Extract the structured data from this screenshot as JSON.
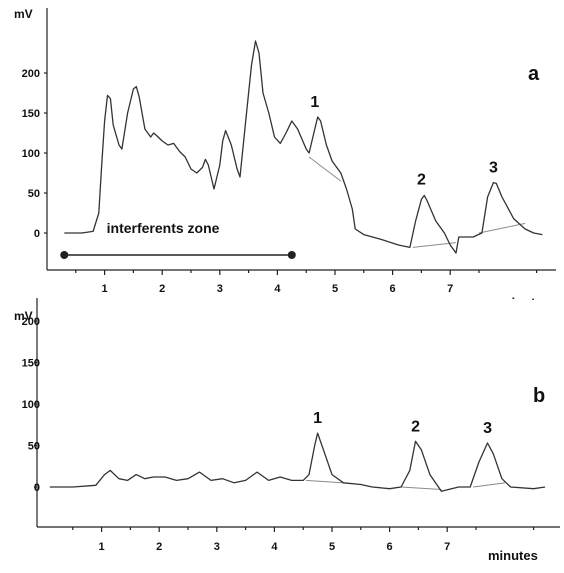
{
  "chart_data": [
    {
      "type": "line",
      "panel_label": "a",
      "title": "",
      "ylabel": "mV",
      "xlabel": "minutes",
      "xlim": [
        0,
        8.5
      ],
      "ylim": [
        -40,
        230
      ],
      "x_ticks": [
        "1",
        "2",
        "3",
        "4",
        "5",
        "6",
        "7"
      ],
      "y_ticks": [
        "0",
        "50",
        "100",
        "150",
        "200"
      ],
      "grid": false,
      "annotation": {
        "text": "interferents zone",
        "range": [
          0.3,
          4.25
        ]
      },
      "peak_labels": [
        {
          "text": "1",
          "x": 4.65,
          "y": 145
        },
        {
          "text": "2",
          "x": 6.5,
          "y": 48
        },
        {
          "text": "3",
          "x": 7.75,
          "y": 63
        }
      ],
      "series": [
        {
          "values": [
            [
              0.3,
              0
            ],
            [
              0.6,
              0
            ],
            [
              0.8,
              2
            ],
            [
              0.9,
              25
            ],
            [
              0.95,
              85
            ],
            [
              1.0,
              140
            ],
            [
              1.05,
              172
            ],
            [
              1.1,
              168
            ],
            [
              1.15,
              135
            ],
            [
              1.25,
              110
            ],
            [
              1.3,
              105
            ],
            [
              1.4,
              150
            ],
            [
              1.5,
              180
            ],
            [
              1.55,
              183
            ],
            [
              1.6,
              170
            ],
            [
              1.7,
              130
            ],
            [
              1.8,
              120
            ],
            [
              1.85,
              125
            ],
            [
              1.9,
              122
            ],
            [
              2.0,
              115
            ],
            [
              2.1,
              110
            ],
            [
              2.2,
              112
            ],
            [
              2.3,
              102
            ],
            [
              2.4,
              95
            ],
            [
              2.5,
              80
            ],
            [
              2.6,
              75
            ],
            [
              2.7,
              82
            ],
            [
              2.75,
              92
            ],
            [
              2.8,
              85
            ],
            [
              2.9,
              55
            ],
            [
              3.0,
              85
            ],
            [
              3.05,
              115
            ],
            [
              3.1,
              128
            ],
            [
              3.2,
              110
            ],
            [
              3.3,
              80
            ],
            [
              3.35,
              70
            ],
            [
              3.45,
              140
            ],
            [
              3.55,
              210
            ],
            [
              3.62,
              240
            ],
            [
              3.68,
              225
            ],
            [
              3.75,
              175
            ],
            [
              3.85,
              150
            ],
            [
              3.95,
              120
            ],
            [
              4.05,
              112
            ],
            [
              4.15,
              125
            ],
            [
              4.25,
              140
            ],
            [
              4.35,
              130
            ],
            [
              4.5,
              105
            ],
            [
              4.55,
              100
            ],
            [
              4.65,
              130
            ],
            [
              4.7,
              145
            ],
            [
              4.75,
              140
            ],
            [
              4.85,
              110
            ],
            [
              4.95,
              90
            ],
            [
              5.1,
              75
            ],
            [
              5.2,
              55
            ],
            [
              5.3,
              30
            ],
            [
              5.35,
              5
            ],
            [
              5.5,
              -2
            ],
            [
              5.8,
              -8
            ],
            [
              6.1,
              -15
            ],
            [
              6.3,
              -18
            ],
            [
              6.4,
              15
            ],
            [
              6.5,
              42
            ],
            [
              6.55,
              47
            ],
            [
              6.6,
              40
            ],
            [
              6.75,
              15
            ],
            [
              6.9,
              0
            ],
            [
              7.0,
              -15
            ],
            [
              7.1,
              -25
            ],
            [
              7.15,
              -5
            ],
            [
              7.4,
              -5
            ],
            [
              7.55,
              0
            ],
            [
              7.65,
              45
            ],
            [
              7.75,
              63
            ],
            [
              7.8,
              62
            ],
            [
              7.9,
              45
            ],
            [
              8.1,
              18
            ],
            [
              8.3,
              5
            ],
            [
              8.45,
              0
            ],
            [
              8.6,
              -2
            ]
          ]
        }
      ],
      "peak_baselines": [
        [
          [
            4.55,
            95
          ],
          [
            5.1,
            65
          ]
        ],
        [
          [
            6.35,
            -18
          ],
          [
            7.1,
            -12
          ]
        ],
        [
          [
            7.5,
            0
          ],
          [
            8.3,
            12
          ]
        ]
      ]
    },
    {
      "type": "line",
      "panel_label": "b",
      "title": "",
      "ylabel": "mV",
      "xlabel": "minutes",
      "xlim": [
        0,
        8.5
      ],
      "ylim": [
        -40,
        230
      ],
      "x_ticks": [
        "1",
        "2",
        "3",
        "4",
        "5",
        "6",
        "7"
      ],
      "y_ticks": [
        "0",
        "50",
        "100",
        "150",
        "200"
      ],
      "grid": false,
      "peak_labels": [
        {
          "text": "1",
          "x": 4.75,
          "y": 65
        },
        {
          "text": "2",
          "x": 6.45,
          "y": 55
        },
        {
          "text": "3",
          "x": 7.7,
          "y": 53
        }
      ],
      "series": [
        {
          "values": [
            [
              0.1,
              0
            ],
            [
              0.5,
              0
            ],
            [
              0.9,
              2
            ],
            [
              1.05,
              15
            ],
            [
              1.15,
              20
            ],
            [
              1.3,
              10
            ],
            [
              1.45,
              8
            ],
            [
              1.6,
              15
            ],
            [
              1.75,
              10
            ],
            [
              1.9,
              12
            ],
            [
              2.1,
              12
            ],
            [
              2.3,
              8
            ],
            [
              2.5,
              10
            ],
            [
              2.7,
              18
            ],
            [
              2.9,
              8
            ],
            [
              3.1,
              10
            ],
            [
              3.3,
              5
            ],
            [
              3.5,
              8
            ],
            [
              3.7,
              18
            ],
            [
              3.9,
              8
            ],
            [
              4.1,
              12
            ],
            [
              4.3,
              8
            ],
            [
              4.5,
              8
            ],
            [
              4.6,
              15
            ],
            [
              4.7,
              50
            ],
            [
              4.75,
              65
            ],
            [
              4.85,
              45
            ],
            [
              5.0,
              15
            ],
            [
              5.2,
              5
            ],
            [
              5.5,
              3
            ],
            [
              5.7,
              0
            ],
            [
              6.0,
              -2
            ],
            [
              6.2,
              0
            ],
            [
              6.35,
              20
            ],
            [
              6.45,
              55
            ],
            [
              6.55,
              45
            ],
            [
              6.7,
              15
            ],
            [
              6.9,
              -5
            ],
            [
              7.2,
              0
            ],
            [
              7.4,
              0
            ],
            [
              7.55,
              30
            ],
            [
              7.7,
              53
            ],
            [
              7.8,
              40
            ],
            [
              7.95,
              10
            ],
            [
              8.1,
              0
            ],
            [
              8.5,
              -2
            ],
            [
              8.7,
              0
            ]
          ]
        }
      ],
      "peak_baselines": [
        [
          [
            4.55,
            8
          ],
          [
            5.2,
            5
          ]
        ],
        [
          [
            6.2,
            0
          ],
          [
            6.9,
            -3
          ]
        ],
        [
          [
            7.45,
            0
          ],
          [
            8.0,
            5
          ]
        ]
      ]
    }
  ]
}
